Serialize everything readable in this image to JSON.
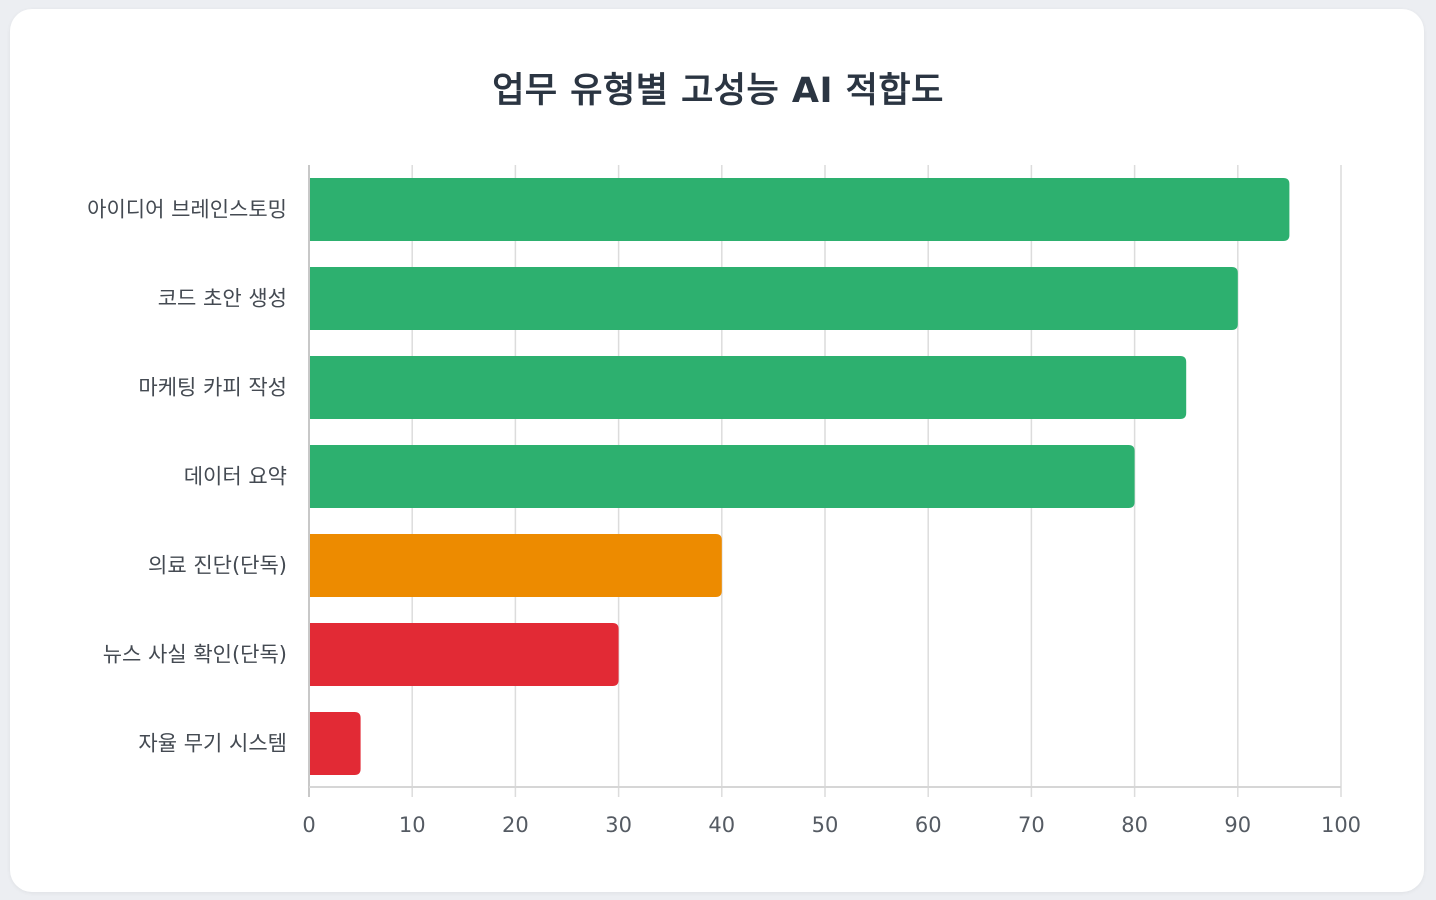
{
  "chart_data": {
    "type": "bar",
    "orientation": "horizontal",
    "title": "업무 유형별 고성능 AI 적합도",
    "categories": [
      "아이디어 브레인스토밍",
      "코드 초안 생성",
      "마케팅 카피 작성",
      "데이터 요약",
      "의료 진단(단독)",
      "뉴스 사실 확인(단독)",
      "자율 무기 시스템"
    ],
    "values": [
      95,
      90,
      85,
      80,
      40,
      30,
      5
    ],
    "colors": [
      "#2db06f",
      "#2db06f",
      "#2db06f",
      "#2db06f",
      "#ed8b00",
      "#e22a35",
      "#e22a35"
    ],
    "xlim": [
      0,
      100
    ],
    "xticks": [
      0,
      10,
      20,
      30,
      40,
      50,
      60,
      70,
      80,
      90,
      100
    ],
    "grid": true,
    "xlabel": "",
    "ylabel": ""
  }
}
